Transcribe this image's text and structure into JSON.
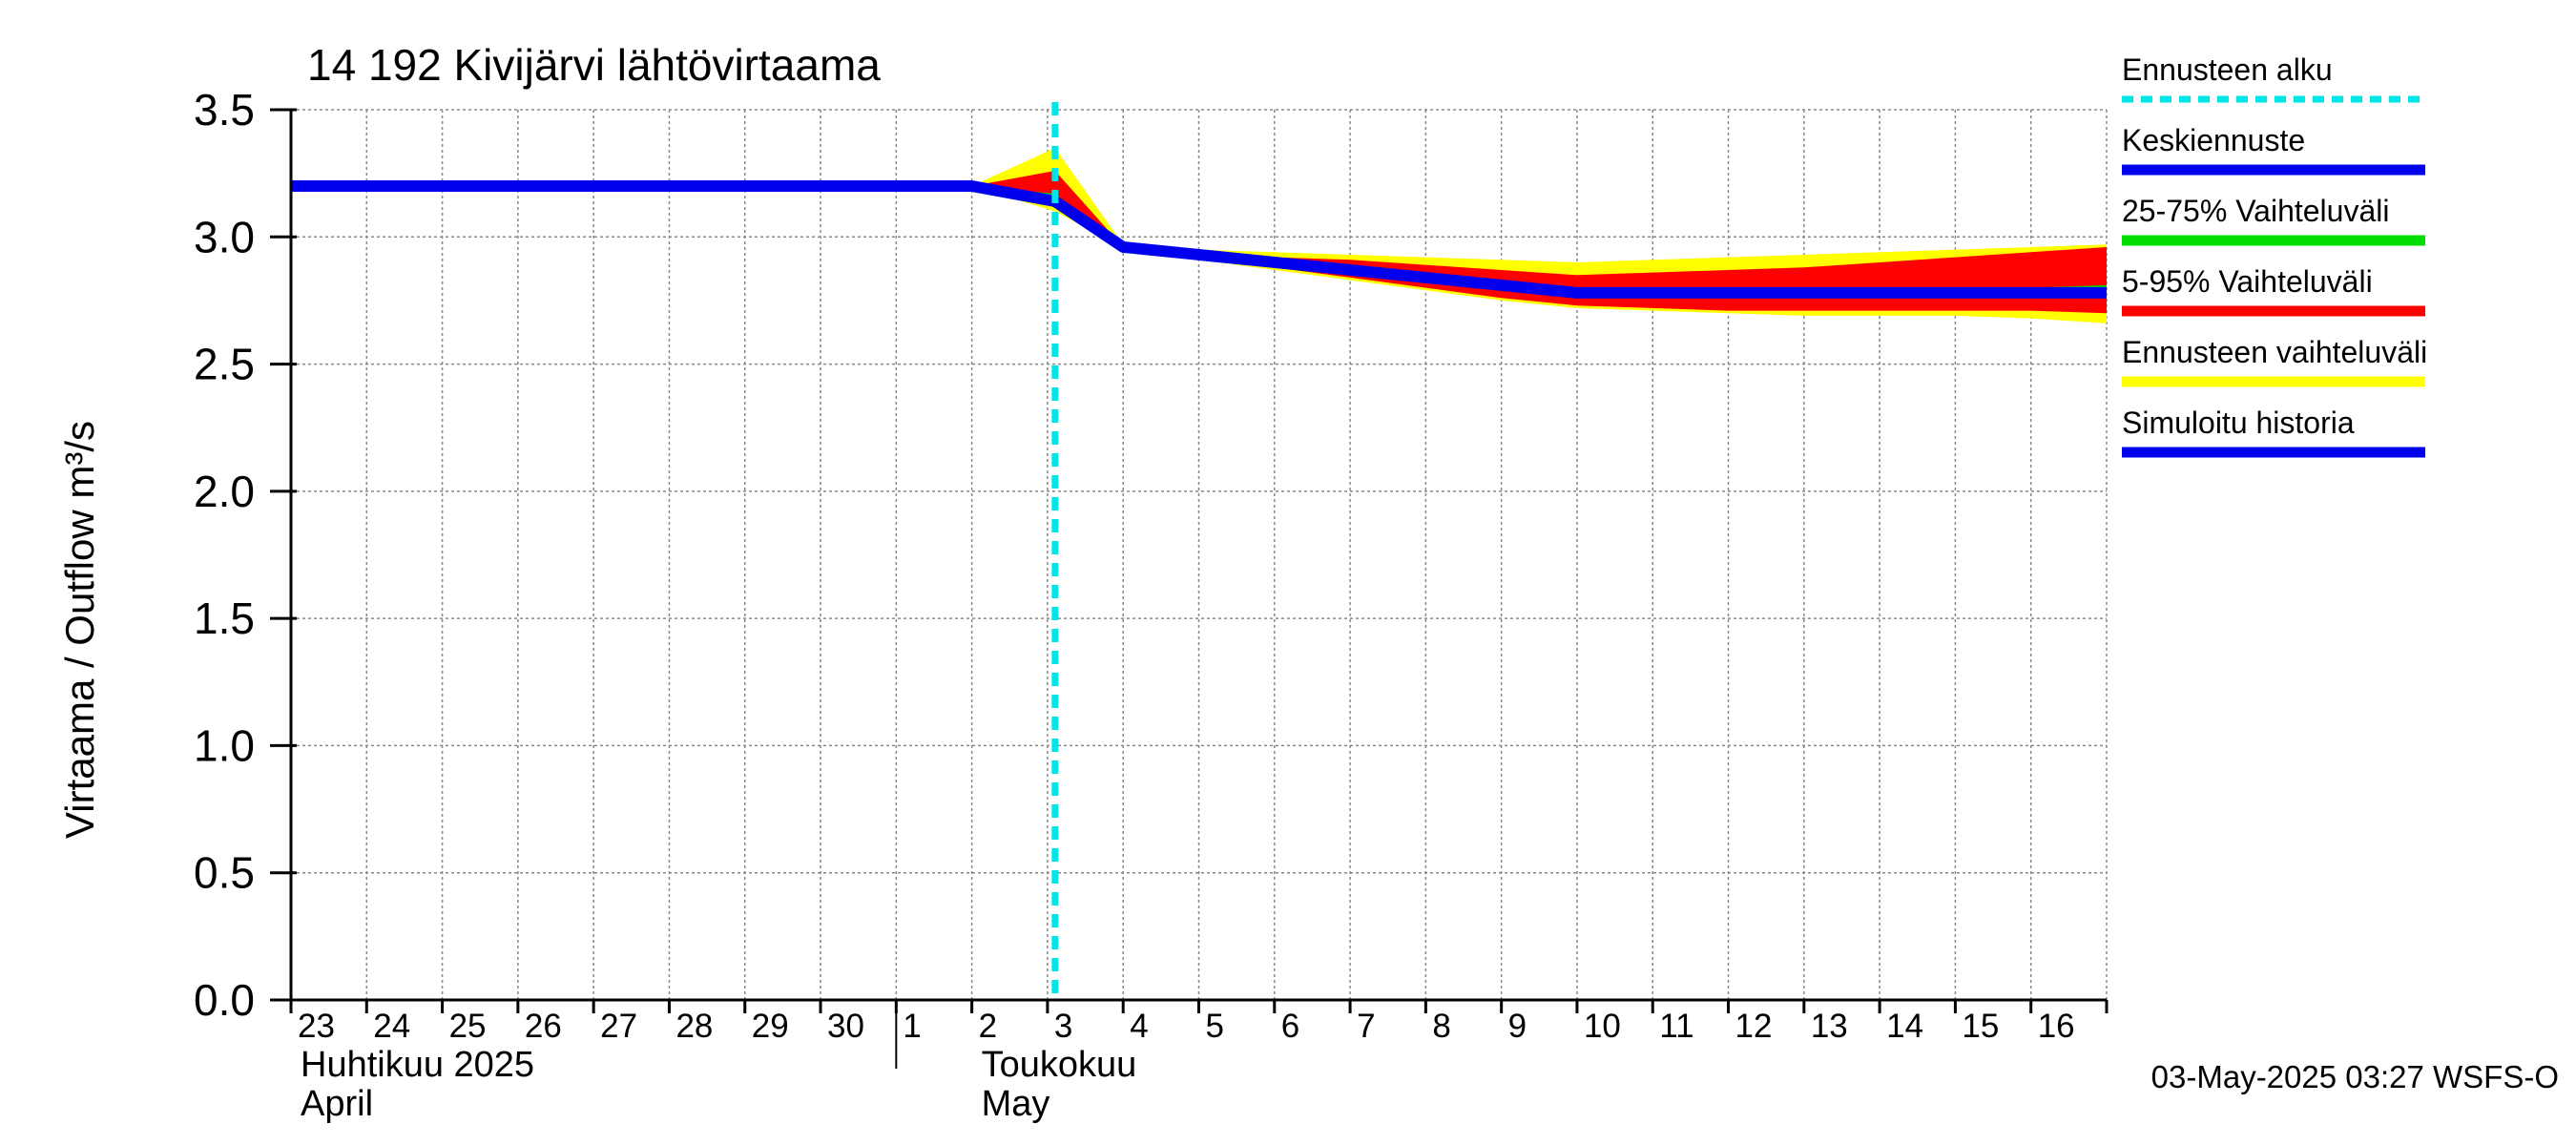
{
  "chart_data": {
    "type": "area",
    "title": "14 192 Kivijärvi lähtövirtaama",
    "ylabel": "Virtaama / Outflow    m³/s",
    "ylim": [
      0,
      3.5
    ],
    "yticks": [
      "0.0",
      "0.5",
      "1.0",
      "1.5",
      "2.0",
      "2.5",
      "3.0",
      "3.5"
    ],
    "ytick_values": [
      0,
      0.5,
      1.0,
      1.5,
      2.0,
      2.5,
      3.0,
      3.5
    ],
    "x_start_day": 23,
    "x_end_day": 47,
    "day_ticks": [
      "23",
      "24",
      "25",
      "26",
      "27",
      "28",
      "29",
      "30",
      "1",
      "2",
      "3",
      "4",
      "5",
      "6",
      "7",
      "8",
      "9",
      "10",
      "11",
      "12",
      "13",
      "14",
      "15",
      "16"
    ],
    "month_labels": [
      {
        "fi": "Huhtikuu  2025",
        "en": "April",
        "day": 23
      },
      {
        "fi": "Toukokuu",
        "en": "May",
        "day": 32
      }
    ],
    "month_boundary_day": 31,
    "forecast_start_day": 33.1,
    "series": [
      {
        "name": "Simuloitu historia",
        "color": "#0000ee",
        "x": [
          23,
          31,
          32,
          33.1
        ],
        "y": [
          3.2,
          3.2,
          3.2,
          3.14
        ]
      },
      {
        "name": "Keskiennuste",
        "color": "#0000ee",
        "x": [
          33.1,
          34,
          35,
          36,
          37,
          38,
          39,
          40,
          41,
          42,
          43,
          44,
          45,
          46,
          47
        ],
        "y": [
          3.14,
          2.96,
          2.93,
          2.9,
          2.87,
          2.84,
          2.81,
          2.78,
          2.78,
          2.78,
          2.78,
          2.78,
          2.78,
          2.78,
          2.78
        ]
      }
    ],
    "bands": [
      {
        "name": "Ennusteen vaihteluväli",
        "color": "#ffff00",
        "x": [
          32,
          33.1,
          34,
          35,
          36,
          37,
          38,
          39,
          40,
          41,
          42,
          43,
          44,
          45,
          46,
          47
        ],
        "upper": [
          3.2,
          3.35,
          2.97,
          2.95,
          2.94,
          2.93,
          2.92,
          2.91,
          2.9,
          2.91,
          2.92,
          2.93,
          2.94,
          2.95,
          2.96,
          2.97
        ],
        "lower": [
          3.2,
          3.1,
          2.96,
          2.91,
          2.87,
          2.83,
          2.79,
          2.75,
          2.72,
          2.71,
          2.7,
          2.69,
          2.69,
          2.69,
          2.68,
          2.66
        ]
      },
      {
        "name": "5-95% Vaihteluväli",
        "color": "#ff0000",
        "x": [
          32,
          33.1,
          34,
          35,
          36,
          37,
          38,
          39,
          40,
          41,
          42,
          43,
          44,
          45,
          46,
          47
        ],
        "upper": [
          3.2,
          3.26,
          2.96,
          2.94,
          2.92,
          2.91,
          2.89,
          2.87,
          2.85,
          2.86,
          2.87,
          2.88,
          2.9,
          2.92,
          2.94,
          2.96
        ],
        "lower": [
          3.2,
          3.12,
          2.96,
          2.91,
          2.88,
          2.84,
          2.8,
          2.76,
          2.73,
          2.72,
          2.71,
          2.71,
          2.71,
          2.71,
          2.71,
          2.7
        ]
      },
      {
        "name": "25-75% Vaihteluväli",
        "color": "#00dd00",
        "x": [
          32,
          33.1,
          34,
          35,
          36,
          37,
          38,
          39,
          40,
          41,
          42,
          43,
          44,
          45,
          46,
          47
        ],
        "upper": [
          3.2,
          3.17,
          2.96,
          2.93,
          2.91,
          2.88,
          2.85,
          2.82,
          2.79,
          2.79,
          2.79,
          2.79,
          2.79,
          2.8,
          2.8,
          2.81
        ],
        "lower": [
          3.2,
          3.12,
          2.96,
          2.92,
          2.89,
          2.86,
          2.83,
          2.8,
          2.77,
          2.76,
          2.76,
          2.76,
          2.76,
          2.76,
          2.76,
          2.76
        ]
      }
    ],
    "legend": [
      {
        "label": "Ennusteen alku",
        "color": "#00e5e5",
        "style": "dashed"
      },
      {
        "label": "Keskiennuste",
        "color": "#0000ee",
        "style": "solid"
      },
      {
        "label": "25-75% Vaihteluväli",
        "color": "#00dd00",
        "style": "solid"
      },
      {
        "label": "5-95% Vaihteluväli",
        "color": "#ff0000",
        "style": "solid"
      },
      {
        "label": "Ennusteen vaihteluväli",
        "color": "#ffff00",
        "style": "solid"
      },
      {
        "label": "Simuloitu historia",
        "color": "#0000ee",
        "style": "solid"
      }
    ],
    "legend_position": "right",
    "footer": "03-May-2025 03:27 WSFS-O",
    "grid": true
  }
}
